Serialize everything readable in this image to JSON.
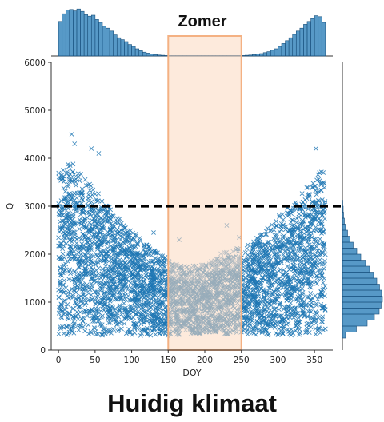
{
  "chart_data": {
    "type": "scatter",
    "xlabel": "DOY",
    "ylabel": "Q",
    "xlim": [
      -10,
      375
    ],
    "ylim": [
      0,
      6000
    ],
    "xticks": [
      0,
      50,
      100,
      150,
      200,
      250,
      300,
      350
    ],
    "yticks": [
      0,
      1000,
      2000,
      3000,
      4000,
      5000,
      6000
    ],
    "marker": "x",
    "color": "#1f77b4",
    "threshold": {
      "y": 3000,
      "style": "dashed",
      "color": "#000000"
    },
    "highlight": {
      "label": "Zomer",
      "x_range": [
        150,
        250
      ],
      "color": "#fbd8bf",
      "edge_color": "#f4b183"
    },
    "caption": "Huidig klimaat",
    "upper_envelope": [
      [
        0,
        3700
      ],
      [
        15,
        4000
      ],
      [
        25,
        3800
      ],
      [
        40,
        3500
      ],
      [
        60,
        3200
      ],
      [
        80,
        2800
      ],
      [
        100,
        2500
      ],
      [
        120,
        2200
      ],
      [
        140,
        2000
      ],
      [
        160,
        1800
      ],
      [
        180,
        1750
      ],
      [
        200,
        1800
      ],
      [
        220,
        2000
      ],
      [
        240,
        2150
      ],
      [
        260,
        2200
      ],
      [
        280,
        2450
      ],
      [
        300,
        2800
      ],
      [
        320,
        3100
      ],
      [
        340,
        3400
      ],
      [
        355,
        3700
      ],
      [
        365,
        3800
      ]
    ],
    "lower_envelope": [
      [
        0,
        300
      ],
      [
        50,
        300
      ],
      [
        100,
        300
      ],
      [
        150,
        300
      ],
      [
        200,
        350
      ],
      [
        250,
        320
      ],
      [
        300,
        300
      ],
      [
        365,
        300
      ]
    ],
    "outliers": [
      [
        18,
        4500
      ],
      [
        22,
        4300
      ],
      [
        55,
        4100
      ],
      [
        130,
        2450
      ],
      [
        165,
        2300
      ],
      [
        230,
        2600
      ],
      [
        247,
        2350
      ],
      [
        352,
        4200
      ],
      [
        362,
        3700
      ],
      [
        45,
        4200
      ]
    ],
    "marginal_x": {
      "bins": [
        [
          0,
          0.72
        ],
        [
          5,
          0.88
        ],
        [
          10,
          0.96
        ],
        [
          15,
          0.97
        ],
        [
          20,
          0.94
        ],
        [
          25,
          0.98
        ],
        [
          30,
          0.93
        ],
        [
          35,
          0.86
        ],
        [
          40,
          0.83
        ],
        [
          45,
          0.85
        ],
        [
          50,
          0.76
        ],
        [
          55,
          0.7
        ],
        [
          60,
          0.62
        ],
        [
          65,
          0.58
        ],
        [
          70,
          0.52
        ],
        [
          75,
          0.44
        ],
        [
          80,
          0.38
        ],
        [
          85,
          0.34
        ],
        [
          90,
          0.3
        ],
        [
          95,
          0.24
        ],
        [
          100,
          0.2
        ],
        [
          105,
          0.15
        ],
        [
          110,
          0.11
        ],
        [
          115,
          0.08
        ],
        [
          120,
          0.06
        ],
        [
          125,
          0.04
        ],
        [
          130,
          0.03
        ],
        [
          135,
          0.02
        ],
        [
          140,
          0.015
        ],
        [
          145,
          0.01
        ],
        [
          150,
          0.01
        ],
        [
          155,
          0.01
        ],
        [
          160,
          0.01
        ],
        [
          165,
          0.01
        ],
        [
          170,
          0.01
        ],
        [
          175,
          0.01
        ],
        [
          180,
          0.01
        ],
        [
          185,
          0.01
        ],
        [
          190,
          0.01
        ],
        [
          195,
          0.01
        ],
        [
          200,
          0.01
        ],
        [
          205,
          0.01
        ],
        [
          210,
          0.01
        ],
        [
          215,
          0.01
        ],
        [
          220,
          0.01
        ],
        [
          225,
          0.01
        ],
        [
          230,
          0.01
        ],
        [
          235,
          0.01
        ],
        [
          240,
          0.01
        ],
        [
          245,
          0.01
        ],
        [
          250,
          0.01
        ],
        [
          255,
          0.015
        ],
        [
          260,
          0.02
        ],
        [
          265,
          0.03
        ],
        [
          270,
          0.04
        ],
        [
          275,
          0.05
        ],
        [
          280,
          0.07
        ],
        [
          285,
          0.09
        ],
        [
          290,
          0.12
        ],
        [
          295,
          0.15
        ],
        [
          300,
          0.2
        ],
        [
          305,
          0.26
        ],
        [
          310,
          0.32
        ],
        [
          315,
          0.38
        ],
        [
          320,
          0.45
        ],
        [
          325,
          0.52
        ],
        [
          330,
          0.58
        ],
        [
          335,
          0.66
        ],
        [
          340,
          0.72
        ],
        [
          345,
          0.78
        ],
        [
          350,
          0.84
        ],
        [
          355,
          0.82
        ],
        [
          360,
          0.7
        ]
      ],
      "bin_width": 5
    },
    "marginal_y": {
      "bins": [
        [
          250,
          0.08
        ],
        [
          375,
          0.35
        ],
        [
          500,
          0.62
        ],
        [
          625,
          0.8
        ],
        [
          750,
          0.92
        ],
        [
          875,
          0.97
        ],
        [
          1000,
          1.0
        ],
        [
          1125,
          0.98
        ],
        [
          1250,
          0.93
        ],
        [
          1375,
          0.86
        ],
        [
          1500,
          0.78
        ],
        [
          1625,
          0.68
        ],
        [
          1750,
          0.58
        ],
        [
          1875,
          0.46
        ],
        [
          2000,
          0.36
        ],
        [
          2125,
          0.27
        ],
        [
          2250,
          0.19
        ],
        [
          2375,
          0.13
        ],
        [
          2500,
          0.08
        ],
        [
          2625,
          0.05
        ],
        [
          2750,
          0.03
        ],
        [
          2875,
          0.02
        ],
        [
          3000,
          0.01
        ]
      ],
      "bin_height": 125
    }
  }
}
